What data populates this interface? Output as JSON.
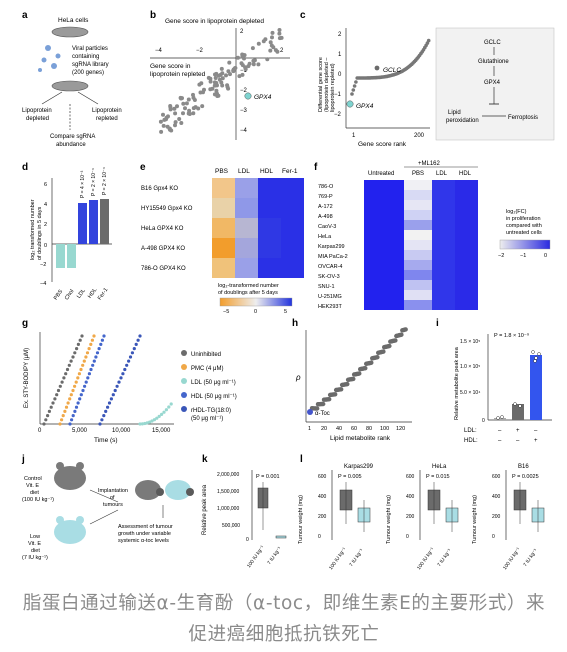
{
  "caption": "脂蛋白通过输送α-生育酚（α-toc，即维生素E的主要形式）来促进癌细胞抵抗铁死亡",
  "panels": {
    "a": {
      "letter": "a",
      "cells": "HeLa cells",
      "virus": [
        "Viral particles",
        "containing",
        "sgRNA library",
        "(200 genes)"
      ],
      "left_cond": [
        "Lipoprotein",
        "depleted"
      ],
      "right_cond": [
        "Lipoprotein",
        "repleted"
      ],
      "compare": [
        "Compare sgRNA",
        "abundance"
      ]
    },
    "b": {
      "letter": "b",
      "top_label": "Gene score in lipoprotein depleted",
      "left_label": [
        "Gene score in",
        "lipoprotein repleted"
      ],
      "gene": "GPX4",
      "x_ticks": [
        "−4",
        "−2",
        "2"
      ],
      "y_ticks": [
        "1",
        "−1",
        "−2",
        "−3",
        "−4"
      ],
      "y_top": "2"
    },
    "c": {
      "letter": "c",
      "ylabel": [
        "Differential gene score",
        "(lipoprotein depleted –",
        "lipoprotein repleted)"
      ],
      "xlabel": "Gene score rank",
      "genes": [
        "GCLC",
        "GPX4"
      ],
      "x_ticks": [
        "1",
        "200"
      ],
      "y_ticks": [
        "2",
        "1",
        "0",
        "−1",
        "−2"
      ],
      "pathway": [
        "GCLC",
        "Glutathione",
        "GPX4",
        "Lipid",
        "peroxidation",
        "Ferroptosis"
      ]
    },
    "d": {
      "letter": "d",
      "ylabel": [
        "log₂ transformed number",
        "of doublings in 5 days"
      ],
      "categories": [
        "PBS",
        "Chol",
        "LDL",
        "HDL",
        "Fer-1"
      ],
      "pvalues": [
        "P = 4 × 10⁻³",
        "P = 2 × 10⁻⁴",
        "P = 2 × 10⁻⁴"
      ],
      "y_ticks": [
        "6",
        "4",
        "2",
        "0",
        "−2",
        "−4"
      ]
    },
    "e": {
      "letter": "e",
      "cols": [
        "PBS",
        "LDL",
        "HDL",
        "Fer-1"
      ],
      "rows": [
        "B16 Gpx4 KO",
        "HY15549 Gpx4 KO",
        "HeLa GPX4 KO",
        "A-498 GPX4 KO",
        "786-O GPX4 KO"
      ],
      "legend": [
        "log₂-transformed number",
        "of doublings after 5 days"
      ],
      "legend_ticks": [
        "−5",
        "0",
        "5"
      ]
    },
    "f": {
      "letter": "f",
      "ml_label": "+ML162",
      "cols": [
        "Untreated",
        "PBS",
        "LDL",
        "HDL"
      ],
      "rows": [
        "786-O",
        "769-P",
        "A-172",
        "A-498",
        "CaoV-3",
        "HeLa",
        "Karpas299",
        "MIA PaCa-2",
        "OVCAR-4",
        "SK-OV-3",
        "SNU-1",
        "U-251MG",
        "HEK293T"
      ],
      "legend": [
        "log₂(FC)",
        "in proliferation",
        "compared with",
        "untreated cells"
      ],
      "legend_ticks": [
        "−2",
        "−1",
        "0"
      ]
    },
    "g": {
      "letter": "g",
      "ylabel": "Ex. STY-BODIPY (μM)",
      "xlabel": "Time (s)",
      "x_ticks": [
        "0",
        "5,000",
        "10,000",
        "15,000"
      ],
      "legend": [
        "Uninhibited",
        "PMC (4 μM)",
        "LDL (50 μg ml⁻¹)",
        "HDL (50 μg ml⁻¹)",
        "rHDL-TG(18:0)",
        "(50 μg ml⁻¹)"
      ],
      "colors": [
        "#6b6b6b",
        "#f0a848",
        "#98d8d0",
        "#4466cc",
        "#3a56b8"
      ]
    },
    "h": {
      "letter": "h",
      "ylabel": "ρ",
      "xlabel": "Lipid metabolite rank",
      "highlight": "α-Toc",
      "x_ticks": [
        "1",
        "20",
        "40",
        "60",
        "80",
        "100",
        "120"
      ]
    },
    "i": {
      "letter": "i",
      "ylabel": "Relative metabolite peak area",
      "pvalue": "P = 1.8 × 10⁻⁹",
      "y_ticks": [
        "1.5 × 10⁵",
        "1.0 × 10⁵",
        "5.0 × 10⁴",
        "0"
      ],
      "ldl": [
        "LDL:",
        "–",
        "+",
        "–"
      ],
      "hdl": [
        "HDL:",
        "–",
        "–",
        "+"
      ]
    },
    "j": {
      "letter": "j",
      "control": [
        "Control",
        "Vit. E",
        "diet",
        "(100 IU kg⁻¹)"
      ],
      "low": [
        "Low",
        "Vit. E",
        "diet",
        "(7 IU kg⁻¹)"
      ],
      "implant": [
        "Implantation",
        "of",
        "tumours"
      ],
      "assess": [
        "Assessment of tumour",
        "growth under variable",
        "systemic α-toc levels"
      ]
    },
    "k": {
      "letter": "k",
      "ylabel": "Relative peak area",
      "pvalue": "P = 0.001",
      "y_ticks": [
        "2,000,000",
        "1,500,000",
        "1,000,000",
        "500,000",
        "0"
      ],
      "x_labels": [
        "100 IU kg⁻¹",
        "7 IU kg⁻¹"
      ]
    },
    "l": {
      "letter": "l",
      "ylabel": "Tumour weight (mg)",
      "x_labels": [
        "100 IU kg⁻¹",
        "7 IU kg⁻¹"
      ],
      "subpanels": [
        {
          "title": "Karpas299",
          "pvalue": "P = 0.005",
          "y_ticks": [
            "600",
            "400",
            "200",
            "0"
          ]
        },
        {
          "title": "HeLa",
          "pvalue": "P = 0.015",
          "y_ticks": [
            "600",
            "400",
            "200",
            "0"
          ]
        },
        {
          "title": "B16",
          "pvalue": "P = 0.0025",
          "y_ticks": [
            "600",
            "400",
            "200",
            "0"
          ]
        }
      ]
    }
  }
}
